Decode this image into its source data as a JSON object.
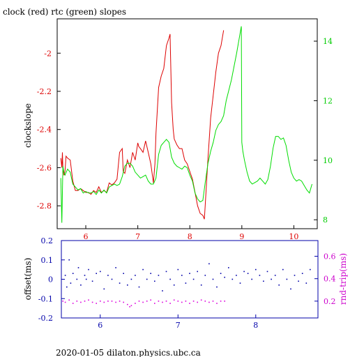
{
  "colors": {
    "clock": "#dd0000",
    "rtc": "#00dd00",
    "offset": "#0000aa",
    "rndtrip": "#dd00dd",
    "axis_top": "#000000",
    "axis_top_left_ticks": "#dd0000",
    "axis_top_right_ticks": "#00cc00",
    "axis_bottom": "#0000aa",
    "axis_bottom_right_ticks": "#cc00cc"
  },
  "chart_data": [
    {
      "type": "line",
      "title": "clock (red) rtc (green) slopes",
      "ylabel": "clockslope",
      "xlim": [
        5.45,
        10.45
      ],
      "ylim": [
        -2.92,
        -1.82
      ],
      "y2lim": [
        7.7,
        14.75
      ],
      "xticks": [
        6,
        7,
        8,
        9,
        10
      ],
      "yticks": [
        -2.8,
        -2.6,
        -2.4,
        -2.2,
        -2
      ],
      "yticklabels": [
        "-2.8",
        "-2.6",
        "-2.4",
        "-2.2",
        "-2"
      ],
      "y2ticks": [
        8,
        10,
        12,
        14
      ],
      "grid": false,
      "series": [
        {
          "name": "clock (red)",
          "axis": "left",
          "x": [
            5.52,
            5.54,
            5.55,
            5.56,
            5.58,
            5.6,
            5.62,
            5.65,
            5.7,
            5.75,
            5.8,
            5.85,
            5.9,
            5.95,
            6.0,
            6.05,
            6.1,
            6.15,
            6.2,
            6.25,
            6.3,
            6.35,
            6.4,
            6.45,
            6.5,
            6.55,
            6.6,
            6.65,
            6.7,
            6.72,
            6.75,
            6.8,
            6.85,
            6.9,
            6.95,
            7.0,
            7.02,
            7.05,
            7.1,
            7.15,
            7.2,
            7.25,
            7.3,
            7.33,
            7.35,
            7.4,
            7.45,
            7.5,
            7.55,
            7.6,
            7.62,
            7.65,
            7.68,
            7.7,
            7.75,
            7.8,
            7.85,
            7.9,
            7.95,
            8.0,
            8.05,
            8.1,
            8.15,
            8.2,
            8.25,
            8.28,
            8.3,
            8.35,
            8.4,
            8.45,
            8.5,
            8.55,
            8.6,
            8.65
          ],
          "y": [
            -2.55,
            -2.6,
            -2.52,
            -2.6,
            -2.64,
            -2.62,
            -2.54,
            -2.55,
            -2.56,
            -2.67,
            -2.72,
            -2.72,
            -2.71,
            -2.72,
            -2.73,
            -2.73,
            -2.74,
            -2.72,
            -2.73,
            -2.7,
            -2.73,
            -2.72,
            -2.73,
            -2.68,
            -2.69,
            -2.68,
            -2.66,
            -2.52,
            -2.5,
            -2.62,
            -2.63,
            -2.56,
            -2.6,
            -2.52,
            -2.56,
            -2.47,
            -2.49,
            -2.5,
            -2.52,
            -2.46,
            -2.52,
            -2.58,
            -2.68,
            -2.58,
            -2.42,
            -2.18,
            -2.12,
            -2.08,
            -1.96,
            -1.92,
            -1.9,
            -2.26,
            -2.4,
            -2.45,
            -2.48,
            -2.5,
            -2.5,
            -2.56,
            -2.58,
            -2.62,
            -2.66,
            -2.73,
            -2.8,
            -2.84,
            -2.85,
            -2.87,
            -2.78,
            -2.55,
            -2.34,
            -2.22,
            -2.1,
            -2.0,
            -1.96,
            -1.88
          ]
        },
        {
          "name": "rtc (green)",
          "axis": "right",
          "x": [
            5.52,
            5.54,
            5.56,
            5.58,
            5.6,
            5.65,
            5.7,
            5.75,
            5.8,
            5.85,
            5.9,
            5.95,
            6.0,
            6.05,
            6.1,
            6.15,
            6.2,
            6.25,
            6.3,
            6.35,
            6.4,
            6.45,
            6.5,
            6.55,
            6.6,
            6.65,
            6.7,
            6.75,
            6.8,
            6.85,
            6.9,
            6.95,
            7.0,
            7.05,
            7.1,
            7.15,
            7.2,
            7.25,
            7.3,
            7.35,
            7.4,
            7.45,
            7.5,
            7.55,
            7.6,
            7.65,
            7.7,
            7.75,
            7.8,
            7.85,
            7.9,
            7.95,
            8.0,
            8.05,
            8.1,
            8.15,
            8.2,
            8.25,
            8.3,
            8.35,
            8.4,
            8.45,
            8.5,
            8.55,
            8.6,
            8.65,
            8.7,
            8.8,
            8.9,
            8.99,
            9.0,
            9.02,
            9.05,
            9.1,
            9.15,
            9.2,
            9.25,
            9.3,
            9.35,
            9.4,
            9.45,
            9.5,
            9.55,
            9.6,
            9.65,
            9.7,
            9.75,
            9.8,
            9.85,
            9.9,
            9.95,
            10.0,
            10.05,
            10.1,
            10.15,
            10.2,
            10.25,
            10.3,
            10.35
          ],
          "y": [
            9.4,
            7.9,
            9.8,
            9.6,
            9.5,
            9.7,
            9.6,
            9.2,
            9.1,
            9.0,
            9.05,
            8.9,
            8.95,
            8.9,
            8.9,
            8.95,
            8.85,
            9.0,
            8.9,
            9.0,
            8.9,
            9.1,
            9.15,
            9.2,
            9.15,
            9.2,
            9.45,
            9.8,
            9.9,
            9.9,
            9.8,
            9.6,
            9.5,
            9.4,
            9.45,
            9.5,
            9.3,
            9.2,
            9.2,
            9.4,
            10.2,
            10.5,
            10.6,
            10.7,
            10.6,
            10.1,
            9.9,
            9.8,
            9.75,
            9.7,
            9.8,
            9.75,
            9.5,
            9.3,
            8.9,
            8.7,
            8.6,
            8.65,
            9.3,
            9.9,
            10.3,
            10.6,
            11.0,
            11.2,
            11.3,
            11.5,
            12.0,
            12.7,
            13.6,
            14.5,
            10.6,
            10.3,
            10.0,
            9.6,
            9.3,
            9.2,
            9.25,
            9.3,
            9.4,
            9.3,
            9.2,
            9.35,
            9.8,
            10.4,
            10.8,
            10.8,
            10.7,
            10.75,
            10.5,
            10.0,
            9.6,
            9.4,
            9.3,
            9.35,
            9.3,
            9.15,
            9.0,
            8.9,
            9.2
          ]
        }
      ]
    },
    {
      "type": "scatter",
      "ylabel": "offset(ms)",
      "y2label": "rnd-trip(ms)",
      "xlim": [
        5.5,
        8.8
      ],
      "ylim": [
        -0.2,
        0.2
      ],
      "y2lim": [
        0.05,
        0.74
      ],
      "xticks": [
        6,
        7,
        8
      ],
      "yticks": [
        -0.2,
        -0.1,
        0,
        0.1,
        0.2
      ],
      "yticklabels": [
        "-0.2",
        "-0.1",
        "0",
        "0.1",
        "0.2"
      ],
      "y2ticks": [
        0.2,
        0.4,
        0.6
      ],
      "y2ticklabels": [
        "0.2",
        "0.4",
        "0.6"
      ],
      "grid": false,
      "series": [
        {
          "name": "offset",
          "axis": "left",
          "x": [
            5.55,
            5.57,
            5.6,
            5.62,
            5.65,
            5.7,
            5.72,
            5.75,
            5.8,
            5.82,
            5.85,
            5.9,
            5.95,
            6.0,
            6.05,
            6.1,
            6.15,
            6.2,
            6.25,
            6.3,
            6.35,
            6.4,
            6.45,
            6.5,
            6.55,
            6.6,
            6.65,
            6.7,
            6.75,
            6.8,
            6.85,
            6.9,
            6.95,
            7.0,
            7.05,
            7.1,
            7.15,
            7.2,
            7.25,
            7.3,
            7.35,
            7.4,
            7.45,
            7.5,
            7.55,
            7.6,
            7.65,
            7.7,
            7.75,
            7.8,
            7.85,
            7.9,
            7.95,
            8.0,
            8.05,
            8.1,
            8.15,
            8.2,
            8.25,
            8.3,
            8.35,
            8.4,
            8.45,
            8.5,
            8.55,
            8.6,
            8.65,
            8.7
          ],
          "y": [
            0.02,
            -0.04,
            0.1,
            -0.02,
            0.03,
            0.0,
            0.06,
            -0.03,
            0.02,
            0.0,
            0.05,
            -0.01,
            0.03,
            0.04,
            -0.05,
            0.02,
            0.0,
            0.06,
            -0.02,
            0.03,
            -0.03,
            0.0,
            0.02,
            -0.04,
            0.05,
            0.0,
            0.03,
            -0.01,
            0.02,
            -0.06,
            0.04,
            0.0,
            -0.03,
            0.05,
            0.02,
            -0.02,
            0.03,
            0.0,
            0.04,
            -0.03,
            0.02,
            0.08,
            0.0,
            -0.04,
            0.03,
            0.01,
            0.06,
            0.0,
            0.02,
            -0.02,
            0.04,
            0.03,
            0.0,
            0.05,
            0.02,
            -0.01,
            0.04,
            0.0,
            0.02,
            -0.03,
            0.05,
            0.0,
            -0.05,
            0.02,
            -0.01,
            0.03,
            -0.02,
            0.05
          ]
        },
        {
          "name": "rnd-trip",
          "axis": "right",
          "x": [
            5.52,
            5.55,
            5.6,
            5.65,
            5.7,
            5.75,
            5.8,
            5.85,
            5.9,
            5.95,
            6.0,
            6.05,
            6.1,
            6.15,
            6.2,
            6.25,
            6.3,
            6.35,
            6.38,
            6.4,
            6.45,
            6.5,
            6.55,
            6.6,
            6.65,
            6.7,
            6.75,
            6.8,
            6.85,
            6.9,
            6.95,
            7.0,
            7.05,
            7.1,
            7.15,
            7.2,
            7.25,
            7.3,
            7.35,
            7.4,
            7.45,
            7.5,
            7.55,
            7.6
          ],
          "y": [
            0.2,
            0.19,
            0.21,
            0.18,
            0.2,
            0.19,
            0.2,
            0.21,
            0.19,
            0.18,
            0.2,
            0.19,
            0.2,
            0.2,
            0.19,
            0.2,
            0.19,
            0.17,
            0.15,
            0.16,
            0.18,
            0.2,
            0.19,
            0.2,
            0.21,
            0.18,
            0.2,
            0.19,
            0.2,
            0.18,
            0.21,
            0.2,
            0.19,
            0.2,
            0.18,
            0.2,
            0.19,
            0.21,
            0.2,
            0.19,
            0.2,
            0.18,
            0.2,
            0.2
          ]
        }
      ]
    }
  ],
  "footer": "2020-01-05 dilaton.physics.ubc.ca"
}
